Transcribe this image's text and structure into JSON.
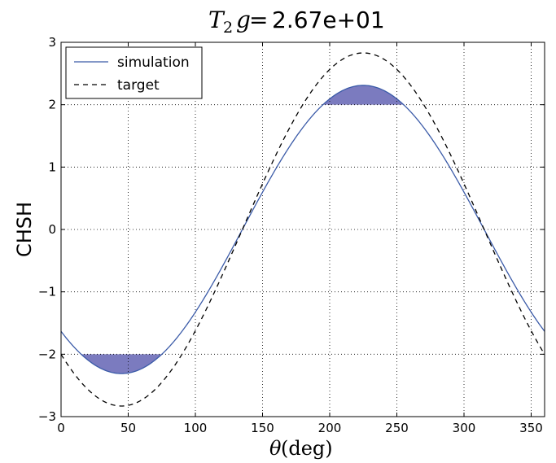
{
  "chart_data": {
    "type": "line",
    "title": {
      "math": "T",
      "math_sub": "2",
      "math_tail": "g",
      "equals": "=",
      "value": "2.67e+01"
    },
    "xlabel": {
      "symbol": "θ",
      "unit": "(deg)"
    },
    "ylabel": "CHSH",
    "xlim": [
      0,
      360
    ],
    "ylim": [
      -3,
      3
    ],
    "xticks": [
      0,
      50,
      100,
      150,
      200,
      250,
      300,
      350
    ],
    "xtick_labels": [
      "0",
      "50",
      "100",
      "150",
      "200",
      "250",
      "300",
      "350"
    ],
    "yticks": [
      -3,
      -2,
      -1,
      0,
      1,
      2,
      3
    ],
    "ytick_labels": [
      "−3",
      "−2",
      "−1",
      "0",
      "1",
      "2",
      "3"
    ],
    "grid": true,
    "legend_position": "top-left",
    "series": [
      {
        "name": "simulation",
        "function": "-A*cos((theta-45deg))",
        "amplitude": 2.31,
        "phase_deg": 45,
        "x": [
          0,
          15,
          30,
          45,
          60,
          75,
          90,
          105,
          120,
          135,
          150,
          165,
          180,
          195,
          210,
          225,
          240,
          255,
          270,
          285,
          300,
          315,
          330,
          345,
          360
        ],
        "y": [
          -1.63,
          -2.0,
          -2.23,
          -2.31,
          -2.23,
          -2.0,
          -1.63,
          -1.16,
          -0.6,
          0.0,
          0.6,
          1.16,
          1.63,
          2.0,
          2.23,
          2.31,
          2.23,
          2.0,
          1.63,
          1.16,
          0.6,
          0.0,
          -0.6,
          -1.16,
          -1.63
        ],
        "color": "#3b5ba8",
        "style": "solid"
      },
      {
        "name": "target",
        "function": "-2*sqrt(2)*cos((theta-45deg))",
        "amplitude": 2.83,
        "phase_deg": 45,
        "x": [
          0,
          15,
          30,
          45,
          60,
          75,
          90,
          105,
          120,
          135,
          150,
          165,
          180,
          195,
          210,
          225,
          240,
          255,
          270,
          285,
          300,
          315,
          330,
          345,
          360
        ],
        "y": [
          -2.0,
          -2.45,
          -2.73,
          -2.83,
          -2.73,
          -2.45,
          -2.0,
          -1.41,
          -0.73,
          0.0,
          0.73,
          1.41,
          2.0,
          2.45,
          2.73,
          2.83,
          2.73,
          2.45,
          2.0,
          1.41,
          0.73,
          0.0,
          -0.73,
          -1.41,
          -2.0
        ],
        "color": "#000000",
        "style": "dashed"
      }
    ],
    "shaded_regions": [
      {
        "description": "simulation above 2",
        "threshold": 2,
        "side": "above",
        "color": "#7b7bbf"
      },
      {
        "description": "simulation below -2",
        "threshold": -2,
        "side": "below",
        "color": "#7b7bbf"
      }
    ]
  }
}
